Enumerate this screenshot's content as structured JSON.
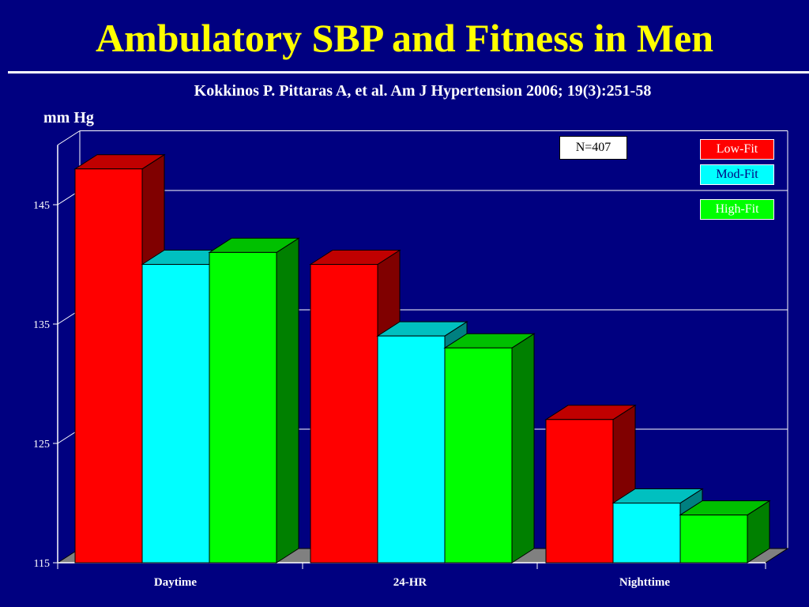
{
  "slide": {
    "title": "Ambulatory SBP and Fitness in Men",
    "citation": "Kokkinos P. Pittaras A, et al. Am J Hypertension 2006; 19(3):251-58",
    "annotation": "N=407"
  },
  "chart_data": {
    "type": "bar",
    "title": "",
    "xlabel": "",
    "ylabel": "mm Hg",
    "categories": [
      "Daytime",
      "24-HR",
      "Nighttime"
    ],
    "ylim": [
      115,
      150
    ],
    "yticks": [
      115,
      125,
      135,
      145
    ],
    "grid": true,
    "legend_position": "top-right",
    "series": [
      {
        "name": "Low-Fit",
        "values": [
          148,
          140,
          127
        ],
        "color": "#ff0000",
        "side_color": "#800000",
        "top_color": "#c00000",
        "label_color": "#ffffff"
      },
      {
        "name": "Mod-Fit",
        "values": [
          140,
          134,
          120
        ],
        "color": "#00ffff",
        "side_color": "#008080",
        "top_color": "#00c0c0",
        "label_color": "#000080"
      },
      {
        "name": "High-Fit",
        "values": [
          141,
          133,
          119
        ],
        "color": "#00ff00",
        "side_color": "#008000",
        "top_color": "#00c000",
        "label_color": "#ffffff"
      }
    ]
  }
}
